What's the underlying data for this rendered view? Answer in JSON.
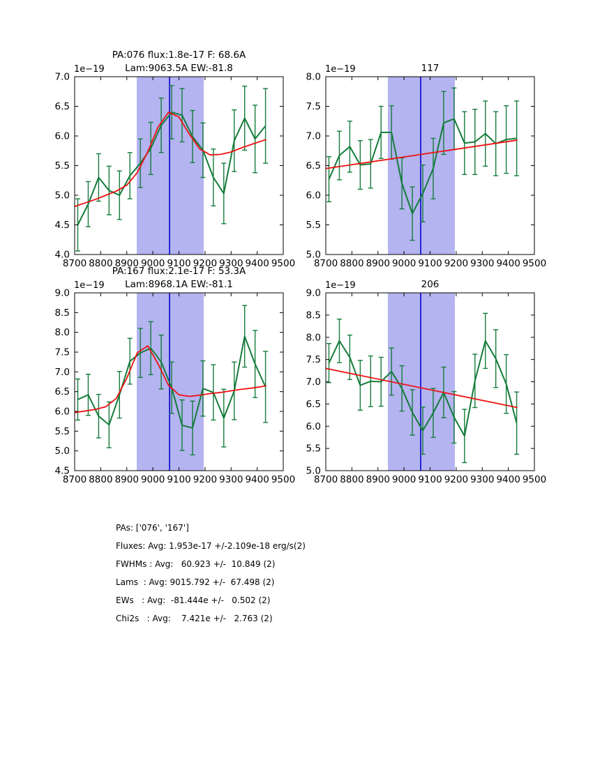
{
  "figure": {
    "background": "#ffffff",
    "colors": {
      "data": "#137c3a",
      "fit": "#ee1111",
      "band": "#b4b4f0",
      "vline": "#0000cd",
      "axis": "#000000"
    }
  },
  "chart_data": [
    {
      "id": "pa076",
      "type": "line",
      "title_lines": [
        "PA:076 flux:1.8e-17 F: 68.6A",
        "Lam:9063.5A EW:-81.8"
      ],
      "offset_text": "1e−19",
      "xlabel": "",
      "ylabel": "",
      "xlim": [
        8700,
        9500
      ],
      "ylim": [
        4.0,
        7.0
      ],
      "xticks": [
        8700,
        8800,
        8900,
        9000,
        9100,
        9200,
        9300,
        9400,
        9500
      ],
      "yticks": [
        4.0,
        4.5,
        5.0,
        5.5,
        6.0,
        6.5,
        7.0
      ],
      "band_x": [
        8938,
        9195
      ],
      "vline_x": 9064,
      "x": [
        8712,
        8752,
        8792,
        8832,
        8872,
        8912,
        8952,
        8992,
        9032,
        9072,
        9112,
        9152,
        9192,
        9232,
        9272,
        9312,
        9352,
        9392,
        9432
      ],
      "y": [
        4.5,
        4.85,
        5.3,
        5.08,
        5.0,
        5.33,
        5.54,
        5.79,
        6.18,
        6.4,
        6.35,
        5.99,
        5.76,
        5.3,
        5.03,
        5.92,
        6.3,
        5.95,
        6.17
      ],
      "yerr": [
        0.44,
        0.38,
        0.4,
        0.41,
        0.41,
        0.39,
        0.41,
        0.44,
        0.46,
        0.45,
        0.45,
        0.44,
        0.46,
        0.48,
        0.51,
        0.52,
        0.54,
        0.57,
        0.63
      ],
      "fit_x": [
        8700,
        8740,
        8780,
        8820,
        8860,
        8900,
        8940,
        8980,
        9020,
        9060,
        9100,
        9140,
        9180,
        9220,
        9260,
        9300,
        9340,
        9380,
        9420,
        9435
      ],
      "fit_y": [
        4.81,
        4.87,
        4.93,
        5.0,
        5.07,
        5.17,
        5.38,
        5.73,
        6.15,
        6.4,
        6.32,
        6.03,
        5.78,
        5.68,
        5.69,
        5.73,
        5.8,
        5.86,
        5.92,
        5.94
      ]
    },
    {
      "id": "117",
      "type": "line",
      "title_lines": [
        "117"
      ],
      "offset_text": "1e−19",
      "xlabel": "",
      "ylabel": "",
      "xlim": [
        8700,
        9500
      ],
      "ylim": [
        5.0,
        8.0
      ],
      "xticks": [
        8700,
        8800,
        8900,
        9000,
        9100,
        9200,
        9300,
        9400,
        9500
      ],
      "yticks": [
        5.0,
        5.5,
        6.0,
        6.5,
        7.0,
        7.5,
        8.0
      ],
      "band_x": [
        8938,
        9195
      ],
      "vline_x": 9064,
      "x": [
        8712,
        8752,
        8792,
        8832,
        8872,
        8912,
        8952,
        8992,
        9032,
        9072,
        9112,
        9152,
        9192,
        9232,
        9272,
        9312,
        9352,
        9392,
        9432
      ],
      "y": [
        6.27,
        6.67,
        6.82,
        6.51,
        6.53,
        7.06,
        7.06,
        6.2,
        5.69,
        6.03,
        6.45,
        7.22,
        7.29,
        6.88,
        6.9,
        7.04,
        6.87,
        6.94,
        6.96
      ],
      "yerr": [
        0.38,
        0.41,
        0.43,
        0.41,
        0.41,
        0.44,
        0.45,
        0.43,
        0.45,
        0.48,
        0.51,
        0.53,
        0.52,
        0.53,
        0.55,
        0.55,
        0.54,
        0.57,
        0.63
      ],
      "fit_x": [
        8700,
        9435
      ],
      "fit_y": [
        6.45,
        6.93
      ]
    },
    {
      "id": "pa167",
      "type": "line",
      "title_lines": [
        "PA:167 flux:2.1e-17 F: 53.3A",
        "Lam:8968.1A EW:-81.1"
      ],
      "offset_text": "1e−19",
      "xlabel": "",
      "ylabel": "",
      "xlim": [
        8700,
        9500
      ],
      "ylim": [
        4.5,
        9.0
      ],
      "xticks": [
        8700,
        8800,
        8900,
        9000,
        9100,
        9200,
        9300,
        9400,
        9500
      ],
      "yticks": [
        4.5,
        5.0,
        5.5,
        6.0,
        6.5,
        7.0,
        7.5,
        8.0,
        8.5,
        9.0
      ],
      "band_x": [
        8938,
        9195
      ],
      "vline_x": 9064,
      "x": [
        8712,
        8752,
        8792,
        8832,
        8872,
        8912,
        8952,
        8992,
        9032,
        9072,
        9112,
        9152,
        9192,
        9232,
        9272,
        9312,
        9352,
        9392,
        9432
      ],
      "y": [
        6.3,
        6.42,
        5.88,
        5.66,
        6.42,
        7.27,
        7.48,
        7.6,
        7.25,
        6.6,
        5.65,
        5.58,
        6.58,
        6.48,
        5.83,
        6.52,
        7.9,
        7.2,
        6.62
      ],
      "yerr": [
        0.52,
        0.52,
        0.55,
        0.58,
        0.59,
        0.58,
        0.62,
        0.67,
        0.68,
        0.65,
        0.64,
        0.68,
        0.7,
        0.7,
        0.73,
        0.73,
        0.78,
        0.85,
        0.9
      ],
      "fit_x": [
        8700,
        8740,
        8780,
        8820,
        8860,
        8900,
        8940,
        8980,
        9020,
        9060,
        9100,
        9140,
        9180,
        9220,
        9260,
        9300,
        9340,
        9380,
        9420,
        9435
      ],
      "fit_y": [
        5.97,
        6.01,
        6.05,
        6.12,
        6.33,
        6.84,
        7.48,
        7.66,
        7.2,
        6.66,
        6.42,
        6.38,
        6.41,
        6.45,
        6.48,
        6.52,
        6.56,
        6.59,
        6.63,
        6.65
      ]
    },
    {
      "id": "206",
      "type": "line",
      "title_lines": [
        "206"
      ],
      "offset_text": "1e−19",
      "xlabel": "",
      "ylabel": "",
      "xlim": [
        8700,
        9500
      ],
      "ylim": [
        5.0,
        9.0
      ],
      "xticks": [
        8700,
        8800,
        8900,
        9000,
        9100,
        9200,
        9300,
        9400,
        9500
      ],
      "yticks": [
        5.0,
        5.5,
        6.0,
        6.5,
        7.0,
        7.5,
        8.0,
        8.5,
        9.0
      ],
      "band_x": [
        8938,
        9195
      ],
      "vline_x": 9064,
      "x": [
        8712,
        8752,
        8792,
        8832,
        8872,
        8912,
        8952,
        8992,
        9032,
        9072,
        9112,
        9152,
        9192,
        9232,
        9272,
        9312,
        9352,
        9392,
        9432
      ],
      "y": [
        7.42,
        7.92,
        7.55,
        6.92,
        7.01,
        7.0,
        7.23,
        6.85,
        6.31,
        5.9,
        6.3,
        6.76,
        6.2,
        5.78,
        7.02,
        7.92,
        7.52,
        6.95,
        6.07
      ],
      "yerr": [
        0.44,
        0.49,
        0.5,
        0.56,
        0.57,
        0.55,
        0.53,
        0.51,
        0.51,
        0.53,
        0.55,
        0.57,
        0.58,
        0.6,
        0.6,
        0.62,
        0.65,
        0.66,
        0.7
      ],
      "fit_x": [
        8700,
        9435
      ],
      "fit_y": [
        7.3,
        6.42
      ]
    }
  ],
  "summary": {
    "lines": [
      "PAs: ['076', '167']",
      "Fluxes: Avg: 1.953e-17 +/-2.109e-18 erg/s(2)",
      "FWHMs : Avg:   60.923 +/-  10.849 (2)",
      "Lams  : Avg: 9015.792 +/-  67.498 (2)",
      "EWs   : Avg:  -81.444e +/-   0.502 (2)",
      "Chi2s   : Avg:    7.421e +/-   2.763 (2)"
    ]
  }
}
